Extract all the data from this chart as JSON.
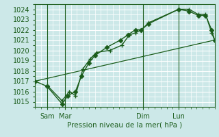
{
  "background_color": "#cce8e8",
  "grid_color": "#ffffff",
  "line_color": "#1a5c1a",
  "text_color": "#1a5c1a",
  "xlabel_text": "Pression niveau de la mer( hPa )",
  "ylim": [
    1014.5,
    1024.5
  ],
  "yticks": [
    1015,
    1016,
    1017,
    1018,
    1019,
    1020,
    1021,
    1022,
    1023,
    1024
  ],
  "xlim": [
    0,
    120
  ],
  "xtick_positions": [
    8,
    20,
    72,
    96
  ],
  "xtick_labels": [
    "Sam",
    "Mar",
    "Dim",
    "Lun"
  ],
  "xminor_step": 4,
  "line1_x": [
    0,
    8,
    18,
    22,
    27,
    31,
    36,
    40,
    48,
    57,
    62,
    67,
    71,
    76,
    96,
    103,
    109,
    114,
    118,
    120
  ],
  "line1_y": [
    1017.0,
    1016.5,
    1014.8,
    1015.6,
    1016.0,
    1017.5,
    1018.8,
    1019.5,
    1020.3,
    1021.0,
    1021.5,
    1022.0,
    1022.0,
    1022.6,
    1024.0,
    1023.8,
    1023.4,
    1023.4,
    1022.0,
    1021.0
  ],
  "line2_x": [
    8,
    18,
    23,
    27,
    32,
    37,
    41,
    50,
    58,
    63,
    67,
    71,
    76,
    96,
    103,
    109,
    114,
    118,
    120
  ],
  "line2_y": [
    1016.6,
    1015.1,
    1016.0,
    1015.6,
    1018.2,
    1019.2,
    1019.8,
    1020.0,
    1020.5,
    1021.5,
    1021.7,
    1022.0,
    1022.7,
    1024.0,
    1024.0,
    1023.5,
    1023.5,
    1021.7,
    1021.0
  ],
  "line3_x": [
    0,
    120
  ],
  "line3_y": [
    1017.0,
    1021.0
  ],
  "marker1_size": 3.5,
  "marker2_size": 5.0,
  "xlabel_fontsize": 7.5,
  "tick_fontsize": 7
}
